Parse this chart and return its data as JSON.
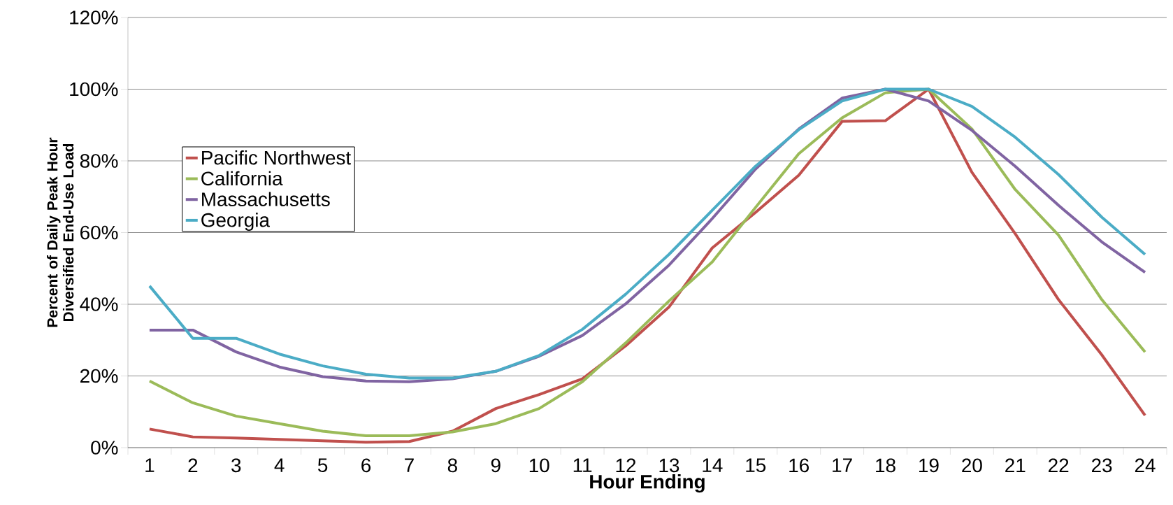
{
  "chart_data": {
    "type": "line",
    "xlabel": "Hour Ending",
    "ylabel": "Percent of Daily Peak Hour Diversified End-Use Load",
    "categories": [
      "1",
      "2",
      "3",
      "4",
      "5",
      "6",
      "7",
      "8",
      "9",
      "10",
      "11",
      "12",
      "13",
      "14",
      "15",
      "16",
      "17",
      "18",
      "19",
      "20",
      "21",
      "22",
      "23",
      "24"
    ],
    "ylim": [
      0,
      120
    ],
    "yticks": [
      {
        "value": 0,
        "label": "0%"
      },
      {
        "value": 20,
        "label": "20%"
      },
      {
        "value": 40,
        "label": "40%"
      },
      {
        "value": 60,
        "label": "60%"
      },
      {
        "value": 80,
        "label": "80%"
      },
      {
        "value": 100,
        "label": "100%"
      },
      {
        "value": 120,
        "label": "120%"
      }
    ],
    "grid": "y",
    "legend": "left",
    "marker": "none",
    "line_style": "solid",
    "series": [
      {
        "name": "Pacific Northwest",
        "color": "#c0504d",
        "values": [
          5.2,
          3,
          2.7,
          2.3,
          1.9,
          1.5,
          1.7,
          4.6,
          10.9,
          14.8,
          19.2,
          28.4,
          39.2,
          55.7,
          65.6,
          76,
          91,
          91.2,
          100,
          76.8,
          59.7,
          41.3,
          25.9,
          9
        ]
      },
      {
        "name": "California",
        "color": "#9bbb59",
        "values": [
          18.6,
          12.5,
          8.8,
          6.7,
          4.6,
          3.3,
          3.3,
          4.4,
          6.7,
          10.9,
          18.4,
          29.2,
          40.9,
          51.8,
          67,
          82,
          92,
          99,
          100,
          88.9,
          72,
          59.3,
          41.3,
          26.7
        ]
      },
      {
        "name": "Massachusetts",
        "color": "#8064a2",
        "values": [
          32.8,
          32.8,
          26.7,
          22.5,
          19.8,
          18.6,
          18.4,
          19.2,
          21.3,
          25.5,
          31.3,
          40.1,
          50.9,
          63.9,
          77.7,
          88.9,
          97.5,
          100,
          96.7,
          88.5,
          78.5,
          67.6,
          57.4,
          48.9
        ]
      },
      {
        "name": "Georgia",
        "color": "#4bacc6",
        "values": [
          45.1,
          30.5,
          30.5,
          26.1,
          22.8,
          20.5,
          19.4,
          19.4,
          21.3,
          25.7,
          33,
          42.8,
          53.9,
          66.2,
          78.5,
          88.7,
          96.7,
          100,
          100,
          95.2,
          86.6,
          76.2,
          64.3,
          53.9
        ]
      }
    ]
  }
}
